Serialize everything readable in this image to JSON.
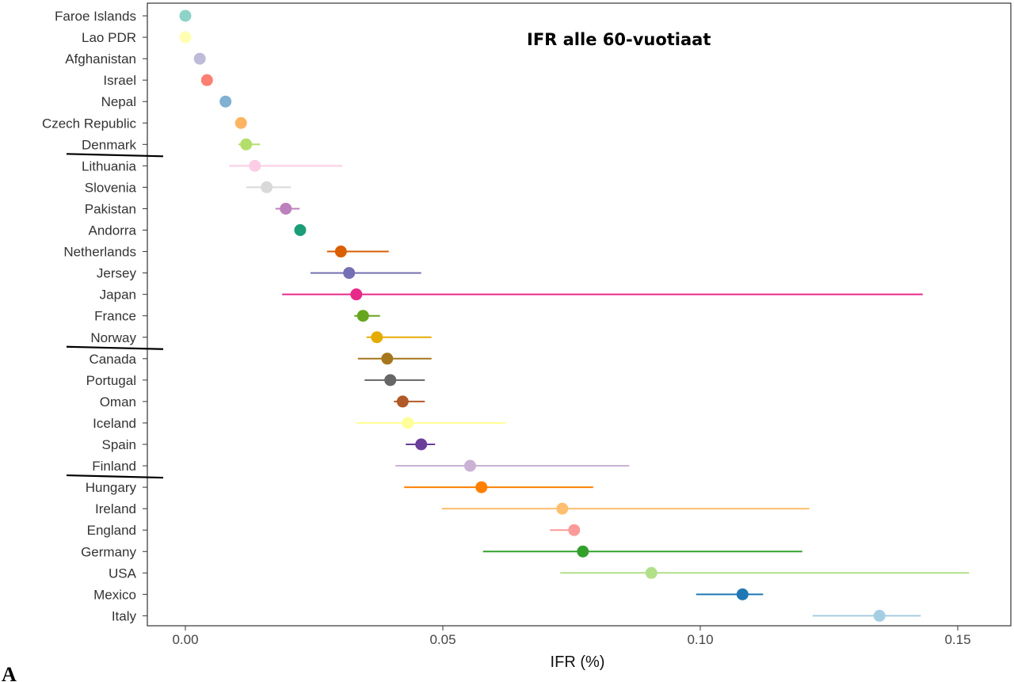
{
  "chart_data": {
    "type": "scatter",
    "subtype": "dot-and-interval",
    "annotation": "IFR alle 60-vuotiaat",
    "xlabel": "IFR (%)",
    "ylabel": "",
    "xlim": [
      -0.0075,
      0.16
    ],
    "x_ticks": [
      0.0,
      0.05,
      0.1,
      0.15
    ],
    "x_tick_labels": [
      "0.00",
      "0.05",
      "0.10",
      "0.15"
    ],
    "grid": false,
    "panel_label": "A",
    "underlined_countries": [
      "Denmark",
      "Norway",
      "Finland"
    ],
    "points": [
      {
        "country": "Faroe Islands",
        "ifr": 0.0,
        "low": null,
        "high": null,
        "color": "#8DD3C7"
      },
      {
        "country": "Lao PDR",
        "ifr": 0.0,
        "low": null,
        "high": null,
        "color": "#FFFFB3"
      },
      {
        "country": "Afghanistan",
        "ifr": 0.0028,
        "low": null,
        "high": null,
        "color": "#BEBADA"
      },
      {
        "country": "Israel",
        "ifr": 0.0042,
        "low": null,
        "high": null,
        "color": "#FB8072"
      },
      {
        "country": "Nepal",
        "ifr": 0.0078,
        "low": null,
        "high": null,
        "color": "#80B1D3"
      },
      {
        "country": "Czech Republic",
        "ifr": 0.0108,
        "low": null,
        "high": null,
        "color": "#FDB462"
      },
      {
        "country": "Denmark",
        "ifr": 0.0118,
        "low": 0.0103,
        "high": 0.0145,
        "color": "#B3DE69"
      },
      {
        "country": "Lithuania",
        "ifr": 0.0135,
        "low": 0.0085,
        "high": 0.0305,
        "color": "#FCCDE5"
      },
      {
        "country": "Slovenia",
        "ifr": 0.0158,
        "low": 0.0118,
        "high": 0.0205,
        "color": "#D9D9D9"
      },
      {
        "country": "Pakistan",
        "ifr": 0.0195,
        "low": 0.0175,
        "high": 0.0222,
        "color": "#BC80BD"
      },
      {
        "country": "Andorra",
        "ifr": 0.0223,
        "low": null,
        "high": null,
        "color": "#1B9E77"
      },
      {
        "country": "Netherlands",
        "ifr": 0.0302,
        "low": 0.0275,
        "high": 0.0395,
        "color": "#D95F02"
      },
      {
        "country": "Jersey",
        "ifr": 0.0318,
        "low": 0.0243,
        "high": 0.0458,
        "color": "#7570B3"
      },
      {
        "country": "Japan",
        "ifr": 0.0332,
        "low": 0.0188,
        "high": 0.1432,
        "color": "#E7298A"
      },
      {
        "country": "France",
        "ifr": 0.0345,
        "low": 0.0328,
        "high": 0.0378,
        "color": "#66A61E"
      },
      {
        "country": "Norway",
        "ifr": 0.0372,
        "low": 0.0352,
        "high": 0.0478,
        "color": "#E6AB02"
      },
      {
        "country": "Canada",
        "ifr": 0.0392,
        "low": 0.0335,
        "high": 0.0478,
        "color": "#A6761D"
      },
      {
        "country": "Portugal",
        "ifr": 0.0398,
        "low": 0.0348,
        "high": 0.0465,
        "color": "#666666"
      },
      {
        "country": "Oman",
        "ifr": 0.0422,
        "low": 0.0405,
        "high": 0.0465,
        "color": "#B15928"
      },
      {
        "country": "Iceland",
        "ifr": 0.0432,
        "low": 0.0332,
        "high": 0.0622,
        "color": "#FFFF99"
      },
      {
        "country": "Spain",
        "ifr": 0.0458,
        "low": 0.0428,
        "high": 0.0485,
        "color": "#6A3D9A"
      },
      {
        "country": "Finland",
        "ifr": 0.0553,
        "low": 0.0408,
        "high": 0.0862,
        "color": "#CAB2D6"
      },
      {
        "country": "Hungary",
        "ifr": 0.0575,
        "low": 0.0425,
        "high": 0.0792,
        "color": "#FF7F00"
      },
      {
        "country": "Ireland",
        "ifr": 0.0732,
        "low": 0.0498,
        "high": 0.1212,
        "color": "#FDBF6F"
      },
      {
        "country": "England",
        "ifr": 0.0755,
        "low": 0.0708,
        "high": 0.0762,
        "color": "#FB9A99"
      },
      {
        "country": "Germany",
        "ifr": 0.0772,
        "low": 0.0578,
        "high": 0.1198,
        "color": "#33A02C"
      },
      {
        "country": "USA",
        "ifr": 0.0905,
        "low": 0.0728,
        "high": 0.1522,
        "color": "#B2DF8A"
      },
      {
        "country": "Mexico",
        "ifr": 0.1082,
        "low": 0.0992,
        "high": 0.1122,
        "color": "#1F78B4"
      },
      {
        "country": "Italy",
        "ifr": 0.1348,
        "low": 0.1218,
        "high": 0.1428,
        "color": "#A6CEE3"
      }
    ]
  }
}
